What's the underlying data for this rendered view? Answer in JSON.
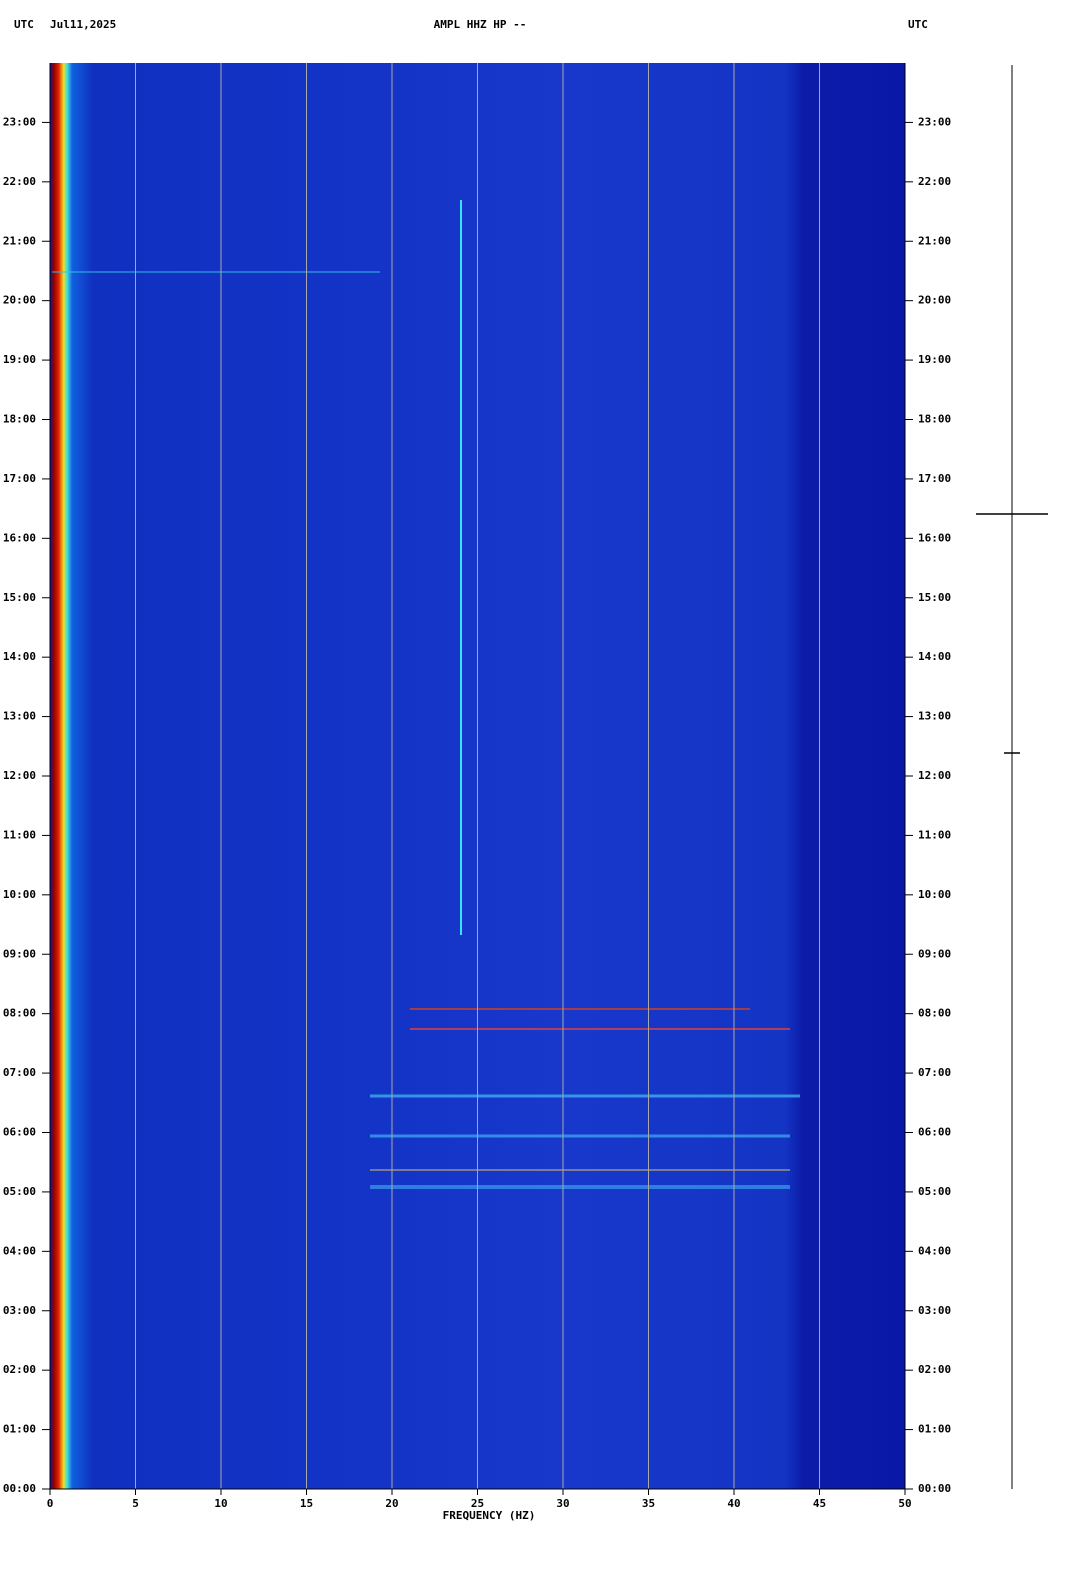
{
  "chart_data": {
    "type": "spectrogram",
    "timezone_left": "UTC",
    "date": "Jul11,2025",
    "title": "AMPL HHZ HP --",
    "timezone_right": "UTC",
    "xlabel": "FREQUENCY (HZ)",
    "xlim": [
      0,
      50
    ],
    "xticks": [
      0,
      5,
      10,
      15,
      20,
      25,
      30,
      35,
      40,
      45,
      50
    ],
    "ylim": [
      0,
      24
    ],
    "yticks": [
      {
        "value": 0,
        "label": "00:00"
      },
      {
        "value": 1,
        "label": "01:00"
      },
      {
        "value": 2,
        "label": "02:00"
      },
      {
        "value": 3,
        "label": "03:00"
      },
      {
        "value": 4,
        "label": "04:00"
      },
      {
        "value": 5,
        "label": "05:00"
      },
      {
        "value": 6,
        "label": "06:00"
      },
      {
        "value": 7,
        "label": "07:00"
      },
      {
        "value": 8,
        "label": "08:00"
      },
      {
        "value": 9,
        "label": "09:00"
      },
      {
        "value": 10,
        "label": "10:00"
      },
      {
        "value": 11,
        "label": "11:00"
      },
      {
        "value": 12,
        "label": "12:00"
      },
      {
        "value": 13,
        "label": "13:00"
      },
      {
        "value": 14,
        "label": "14:00"
      },
      {
        "value": 15,
        "label": "15:00"
      },
      {
        "value": 16,
        "label": "16:00"
      },
      {
        "value": 17,
        "label": "17:00"
      },
      {
        "value": 18,
        "label": "18:00"
      },
      {
        "value": 19,
        "label": "19:00"
      },
      {
        "value": 20,
        "label": "20:00"
      },
      {
        "value": 21,
        "label": "21:00"
      },
      {
        "value": 22,
        "label": "22:00"
      },
      {
        "value": 23,
        "label": "23:00"
      }
    ],
    "grid": true,
    "grid_color": "#a8a8a8"
  }
}
